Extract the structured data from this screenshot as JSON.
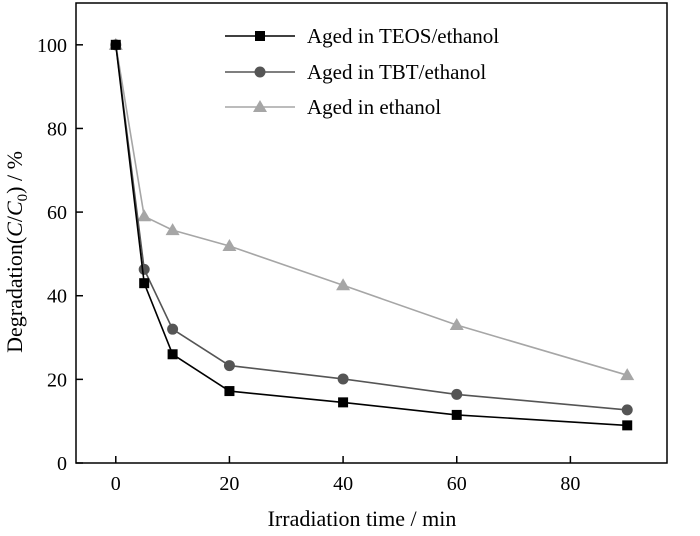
{
  "chart_data": {
    "type": "line",
    "xlabel": "Irradiation time / min",
    "ylabel": {
      "prefix": "Degradation(",
      "italic1": "C",
      "slash": "/",
      "italic2": "C",
      "subscript": "0",
      "suffix": ") / %"
    },
    "xlim": [
      -7,
      97
    ],
    "ylim": [
      0,
      110
    ],
    "xticks": [
      0,
      20,
      40,
      60,
      80
    ],
    "yticks": [
      0,
      20,
      40,
      60,
      80,
      100
    ],
    "x": [
      0,
      5,
      10,
      20,
      40,
      60,
      90
    ],
    "series": [
      {
        "name": "Aged in TEOS/ethanol",
        "marker": "square",
        "color": "#000000",
        "values": [
          100,
          43,
          26,
          17.2,
          14.5,
          11.5,
          9
        ]
      },
      {
        "name": "Aged in TBT/ethanol",
        "marker": "circle",
        "color": "#555555",
        "values": [
          100,
          46.3,
          32,
          23.3,
          20.1,
          16.4,
          12.7
        ]
      },
      {
        "name": "Aged in ethanol",
        "marker": "triangle",
        "color": "#a6a6a6",
        "values": [
          100,
          59,
          55.7,
          51.9,
          42.5,
          33,
          21
        ]
      }
    ],
    "legend_position": "top-right",
    "grid": false
  }
}
